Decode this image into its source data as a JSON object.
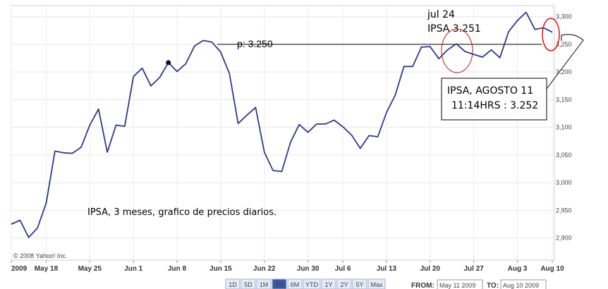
{
  "chart_data": {
    "type": "line",
    "title": "",
    "xlabel": "",
    "ylabel": "",
    "ylim": [
      2860,
      3320
    ],
    "y_ticks": [
      "2,900",
      "2,950",
      "3,000",
      "3,050",
      "3,100",
      "3,150",
      "3,200",
      "3,250",
      "3,300"
    ],
    "x_ticks": [
      "2009",
      "May 18",
      "May 25",
      "Jun 1",
      "Jun 8",
      "Jun 15",
      "Jun 22",
      "Jun 30",
      "Jul 6",
      "Jul 13",
      "Jul 20",
      "Jul 27",
      "Aug 3",
      "Aug 10"
    ],
    "grid": true,
    "series": [
      {
        "name": "",
        "color": "#2b3a8e",
        "values": [
          2925,
          2932,
          2901,
          2918,
          2963,
          3057,
          3054,
          3053,
          3064,
          3104,
          3133,
          3055,
          3104,
          3102,
          3192,
          3207,
          3175,
          3190,
          3217,
          3201,
          3215,
          3247,
          3257,
          3254,
          3236,
          3197,
          3107,
          3122,
          3136,
          3055,
          3022,
          3020,
          3073,
          3105,
          3091,
          3106,
          3106,
          3113,
          3101,
          3086,
          3062,
          3085,
          3083,
          3127,
          3158,
          3210,
          3210,
          3245,
          3246,
          3224,
          3240,
          3251,
          3237,
          3232,
          3227,
          3240,
          3226,
          3273,
          3293,
          3308,
          3277,
          3280,
          3272
        ]
      }
    ],
    "marked_point": {
      "value": 3217
    },
    "reference_line": {
      "value": 3250,
      "label": "p: 3.250"
    }
  },
  "copyright": "© 2008 Yahoo! Inc.",
  "annotations": {
    "jul24_line1": "jul 24",
    "jul24_line2": "IPSA 3.251",
    "box_line1": "IPSA, AGOSTO 11",
    "box_line2": "11:14HRS : 3.252",
    "caption": "IPSA, 3 meses, grafico de precios diarios."
  },
  "range_buttons": [
    "1D",
    "5D",
    "1M",
    "3M",
    "6M",
    "YTD",
    "1Y",
    "2Y",
    "5Y",
    "Max"
  ],
  "selected_range": "3M",
  "from_label": "FROM:",
  "from_value": "May 11 2009",
  "to_label": "TO:",
  "to_value": "Aug 10 2009"
}
